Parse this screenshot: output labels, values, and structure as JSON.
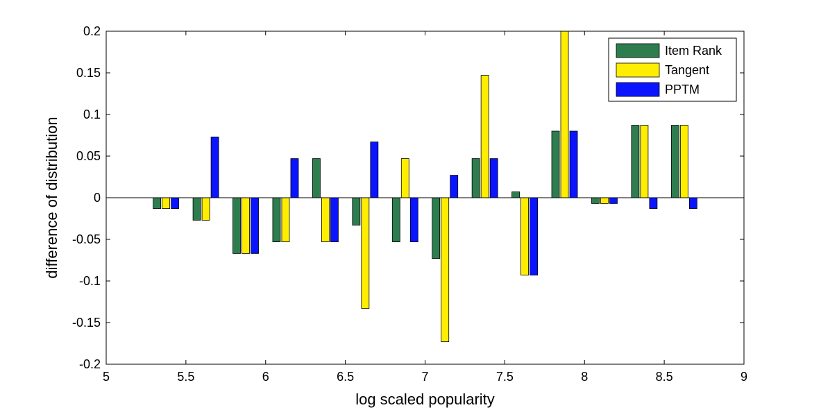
{
  "chart_data": {
    "type": "bar",
    "xlabel": "log scaled popularity",
    "ylabel": "difference of distribution",
    "xlim": [
      5,
      9
    ],
    "ylim": [
      -0.2,
      0.2
    ],
    "xticks": [
      "5",
      "5.5",
      "6",
      "6.5",
      "7",
      "7.5",
      "8",
      "8.5",
      "9"
    ],
    "yticks": [
      "-0.2",
      "-0.15",
      "-0.1",
      "-0.05",
      "0",
      "0.05",
      "0.1",
      "0.15",
      "0.2"
    ],
    "x": [
      5.375,
      5.625,
      5.875,
      6.125,
      6.375,
      6.625,
      6.875,
      7.125,
      7.375,
      7.625,
      7.875,
      8.125,
      8.375,
      8.625
    ],
    "legend_position": "top-right",
    "grid": false,
    "series": [
      {
        "name": "Item Rank",
        "color": "#2e7d4f",
        "values": [
          -0.013,
          -0.027,
          -0.067,
          -0.053,
          0.047,
          -0.033,
          -0.053,
          -0.073,
          0.047,
          0.007,
          0.08,
          -0.007,
          0.087,
          0.087
        ]
      },
      {
        "name": "Tangent",
        "color": "#ffee00",
        "values": [
          -0.013,
          -0.027,
          -0.067,
          -0.053,
          -0.053,
          -0.133,
          0.047,
          -0.173,
          0.147,
          -0.093,
          0.2,
          -0.007,
          0.087,
          0.087
        ]
      },
      {
        "name": "PPTM",
        "color": "#0a14ff",
        "values": [
          -0.013,
          0.073,
          -0.067,
          0.047,
          -0.053,
          0.067,
          -0.053,
          0.027,
          0.047,
          -0.093,
          0.08,
          -0.007,
          -0.013,
          -0.013
        ]
      }
    ]
  }
}
